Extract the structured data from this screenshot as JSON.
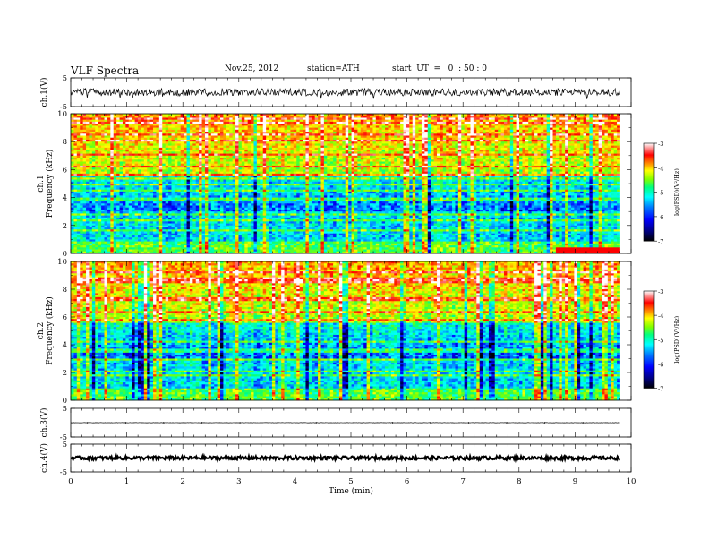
{
  "header": {
    "title": "VLF  Spectra",
    "date": "Nov.25, 2012",
    "station": "station=ATH",
    "start": "start  UT  =   0  : 50 : 0"
  },
  "colors": {
    "axes": "#000000",
    "colormap": [
      "#000000",
      "#000080",
      "#0000ff",
      "#0080ff",
      "#00ffff",
      "#00ff80",
      "#80ff00",
      "#ffff00",
      "#ff8000",
      "#ff0000",
      "#ffffff"
    ]
  },
  "chart_data": [
    {
      "type": "line",
      "id": "ch1-waveform",
      "ylabel": "ch.1(V)",
      "ylim": [
        -5,
        5
      ],
      "yticks": [
        "5",
        "-5"
      ],
      "xlim": [
        0,
        10
      ],
      "series": [
        {
          "x": [
            0,
            9.8
          ],
          "y": [
            0,
            0
          ],
          "noise_amplitude": 1.3
        }
      ]
    },
    {
      "type": "heatmap",
      "id": "ch1-spectrogram",
      "xlabel": "",
      "ylabel": "ch.1 Frequency (kHz)",
      "ylim": [
        0,
        10
      ],
      "yticks": [
        "0",
        "2",
        "4",
        "6",
        "8",
        "10"
      ],
      "xlim": [
        0,
        10
      ],
      "x_data_end": 9.8,
      "colorbar": {
        "label": "log(PSD)(V²/Hz)",
        "range": [
          -7,
          -3
        ],
        "ticks": [
          "-3",
          "-4",
          "-5",
          "-6",
          "-7"
        ]
      }
    },
    {
      "type": "heatmap",
      "id": "ch2-spectrogram",
      "xlabel": "",
      "ylabel": "ch.2 Frequency (kHz)",
      "ylim": [
        0,
        10
      ],
      "yticks": [
        "0",
        "2",
        "4",
        "6",
        "8",
        "10"
      ],
      "xlim": [
        0,
        10
      ],
      "x_data_end": 9.8,
      "colorbar": {
        "label": "log(PSD)(V²/Hz)",
        "range": [
          -7,
          -3
        ],
        "ticks": [
          "-3",
          "-4",
          "-5",
          "-6",
          "-7"
        ]
      }
    },
    {
      "type": "line",
      "id": "ch3-waveform",
      "ylabel": "ch.3(V)",
      "ylim": [
        -5,
        5
      ],
      "yticks": [
        "5",
        "-5"
      ],
      "xlim": [
        0,
        10
      ],
      "series": [
        {
          "x": [
            0,
            9.8
          ],
          "y": [
            0,
            0
          ],
          "noise_amplitude": 0.05
        }
      ]
    },
    {
      "type": "line",
      "id": "ch4-waveform",
      "ylabel": "ch.4(V)",
      "ylim": [
        -5,
        5
      ],
      "yticks": [
        "5",
        "-5"
      ],
      "xlim": [
        0,
        10
      ],
      "series": [
        {
          "x": [
            0,
            9.8
          ],
          "y": [
            0,
            0
          ],
          "noise_amplitude": 0.6
        }
      ]
    }
  ],
  "xaxis": {
    "label": "Time  (min)",
    "ticks": [
      "0",
      "1",
      "2",
      "3",
      "4",
      "5",
      "6",
      "7",
      "8",
      "9",
      "10"
    ]
  }
}
